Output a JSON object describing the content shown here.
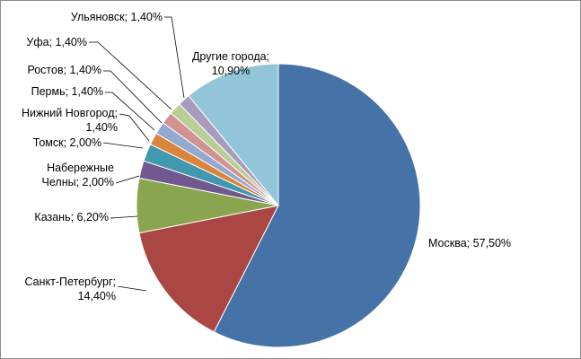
{
  "chart_data": {
    "type": "pie",
    "title": "",
    "start_angle_deg": 0,
    "direction": "clockwise",
    "legend": "none",
    "data_labels": "category; percent with leader lines",
    "slices": [
      {
        "category": "Москва",
        "value": 57.5,
        "label_lines": [
          "Москва; 57,50%"
        ],
        "color": "#4572A7"
      },
      {
        "category": "Санкт-Петербург",
        "value": 14.4,
        "label_lines": [
          "Санкт-Петербург;",
          "14,40%"
        ],
        "color": "#AA4643"
      },
      {
        "category": "Казань",
        "value": 6.2,
        "label_lines": [
          "Казань; 6,20%"
        ],
        "color": "#89A54E"
      },
      {
        "category": "Набережные Челны",
        "value": 2.0,
        "label_lines": [
          "Набережные",
          "Челны; 2,00%"
        ],
        "color": "#71588F"
      },
      {
        "category": "Томск",
        "value": 2.0,
        "label_lines": [
          "Томск; 2,00%"
        ],
        "color": "#4198AF"
      },
      {
        "category": "Нижний Новгород",
        "value": 1.4,
        "label_lines": [
          "Нижний Новгород;",
          "1,40%"
        ],
        "color": "#DB843D"
      },
      {
        "category": "Пермь",
        "value": 1.4,
        "label_lines": [
          "Пермь; 1,40%"
        ],
        "color": "#93A9CF"
      },
      {
        "category": "Ростов",
        "value": 1.4,
        "label_lines": [
          "Ростов; 1,40%"
        ],
        "color": "#D19392"
      },
      {
        "category": "Уфа",
        "value": 1.4,
        "label_lines": [
          "Уфа; 1,40%"
        ],
        "color": "#B9CD96"
      },
      {
        "category": "Ульяновск",
        "value": 1.4,
        "label_lines": [
          "Ульяновск; 1,40%"
        ],
        "color": "#A99BBD"
      },
      {
        "category": "Другие города",
        "value": 10.9,
        "label_lines": [
          "Другие города;",
          "10,90%"
        ],
        "color": "#92C5D8"
      }
    ]
  }
}
